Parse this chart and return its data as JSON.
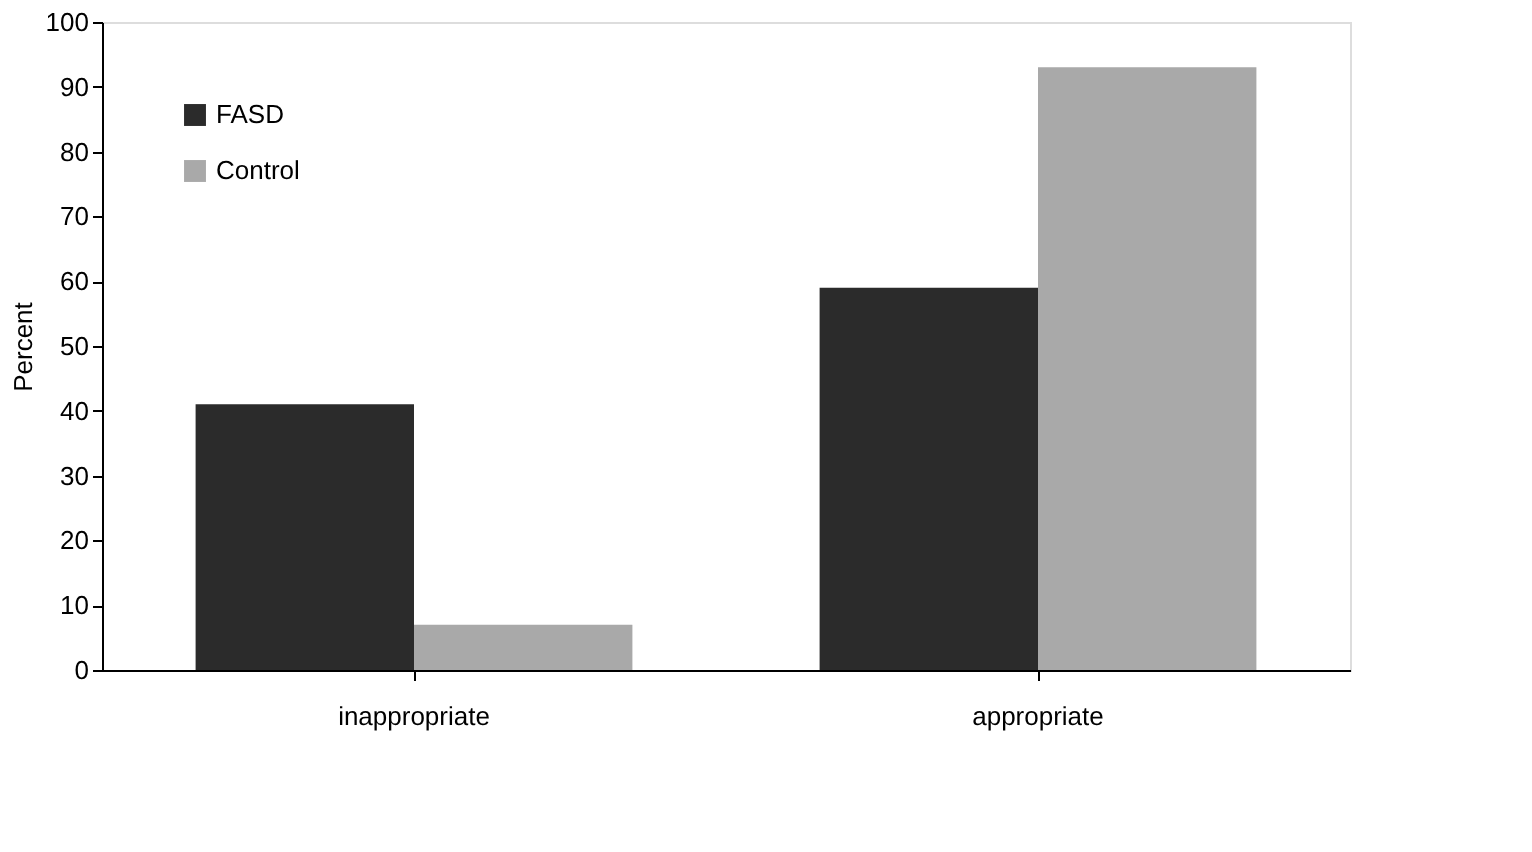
{
  "chart_data": {
    "type": "bar",
    "ylabel": "Percent",
    "categories": [
      "inappropriate",
      "appropriate"
    ],
    "series": [
      {
        "name": "FASD",
        "color": "#2b2b2b",
        "values": [
          41,
          59
        ]
      },
      {
        "name": "Control",
        "color": "#a9a9a9",
        "values": [
          7,
          93
        ]
      }
    ],
    "ylim": [
      0,
      100
    ],
    "yticks": [
      0,
      10,
      20,
      30,
      40,
      50,
      60,
      70,
      80,
      90,
      100
    ],
    "grid": false,
    "legend": "top left"
  }
}
